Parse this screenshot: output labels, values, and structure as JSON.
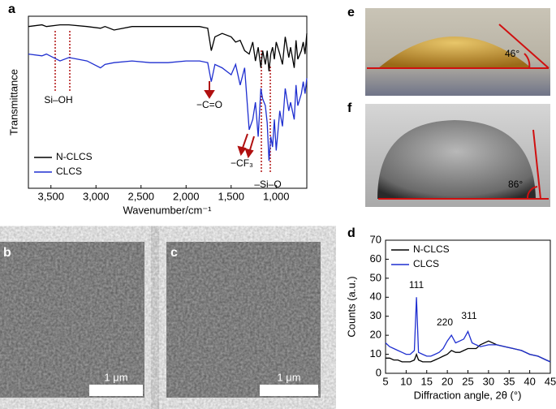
{
  "panel_labels": [
    "a",
    "b",
    "c",
    "d",
    "e",
    "f"
  ],
  "scale_bars": [
    "1 μm",
    "1 μm"
  ],
  "contact_angles": [
    "46°",
    "86°"
  ],
  "chart_data": [
    {
      "type": "line",
      "x_label": "Wavenumber/cm⁻¹",
      "y_label": "Transmittance",
      "xlim": [
        3750,
        660
      ],
      "xticks": [
        {
          "value": 3500,
          "label": "3,500"
        },
        {
          "value": 3000,
          "label": "3,000"
        },
        {
          "value": 2500,
          "label": "2,500"
        },
        {
          "value": 2000,
          "label": "2,000"
        },
        {
          "value": 1500,
          "label": "1,500"
        },
        {
          "value": 1000,
          "label": "1,000"
        }
      ],
      "ylim": [
        0,
        100
      ],
      "annotations": [
        "Si–OH",
        "−C=O",
        "−CF₃",
        "–Si–O"
      ],
      "x": [
        3750,
        3600,
        3550,
        3400,
        3300,
        3100,
        2950,
        2900,
        2800,
        2600,
        2400,
        2200,
        2000,
        1850,
        1760,
        1720,
        1680,
        1600,
        1500,
        1450,
        1400,
        1350,
        1300,
        1260,
        1230,
        1200,
        1170,
        1150,
        1120,
        1100,
        1080,
        1060,
        1040,
        1020,
        1000,
        960,
        930,
        900,
        860,
        840,
        800,
        780,
        760,
        720,
        700,
        680,
        660
      ],
      "series": [
        {
          "name": "N-CLCS",
          "color": "#000000",
          "values": [
            94,
            95,
            94,
            95,
            95,
            94,
            93,
            94,
            92,
            94,
            94,
            94,
            94,
            94,
            93,
            80,
            88,
            90,
            88,
            85,
            86,
            80,
            78,
            85,
            74,
            82,
            70,
            80,
            72,
            80,
            68,
            78,
            82,
            75,
            85,
            78,
            72,
            88,
            76,
            82,
            70,
            86,
            75,
            80,
            85,
            78,
            90
          ]
        },
        {
          "name": "CLCS",
          "color": "#1f2fd0",
          "values": [
            78,
            77,
            78,
            74,
            76,
            74,
            70,
            72,
            73,
            74,
            73,
            73,
            74,
            74,
            73,
            62,
            72,
            70,
            66,
            72,
            60,
            70,
            34,
            40,
            50,
            30,
            58,
            52,
            48,
            38,
            16,
            30,
            24,
            40,
            22,
            45,
            36,
            58,
            45,
            50,
            40,
            60,
            48,
            55,
            62,
            55,
            64
          ]
        }
      ]
    },
    {
      "type": "line",
      "x_label": "Diffraction angle, 2θ (°)",
      "y_label": "Counts (a.u.)",
      "xlim": [
        5,
        45
      ],
      "xticks": [
        5,
        10,
        15,
        20,
        25,
        30,
        35,
        40,
        45
      ],
      "ylim": [
        0,
        70
      ],
      "yticks": [
        0,
        10,
        20,
        30,
        40,
        50,
        60,
        70
      ],
      "annotations": [
        "111",
        "220",
        "311"
      ],
      "x": [
        5,
        6,
        7,
        8,
        9,
        10,
        11,
        12,
        12.5,
        13,
        14,
        15,
        16,
        17,
        18,
        19,
        20,
        21,
        22,
        23,
        24,
        25,
        26,
        27,
        28,
        30,
        32,
        34,
        36,
        38,
        40,
        42,
        44,
        45
      ],
      "series": [
        {
          "name": "N-CLCS",
          "color": "#000000",
          "values": [
            8,
            8,
            7,
            7,
            6,
            6,
            6,
            7,
            10,
            7,
            6,
            6,
            6,
            7,
            8,
            9,
            10,
            12,
            11,
            11,
            12,
            13,
            13,
            13,
            15,
            17,
            15,
            14,
            13,
            12,
            10,
            9,
            7,
            6
          ]
        },
        {
          "name": "CLCS",
          "color": "#1f2fd0",
          "values": [
            16,
            14,
            13,
            12,
            11,
            10,
            10,
            12,
            40,
            11,
            10,
            9,
            9,
            10,
            11,
            13,
            17,
            20,
            16,
            17,
            18,
            22,
            16,
            15,
            14,
            15,
            15,
            14,
            13,
            12,
            10,
            9,
            7,
            6
          ]
        }
      ]
    }
  ]
}
